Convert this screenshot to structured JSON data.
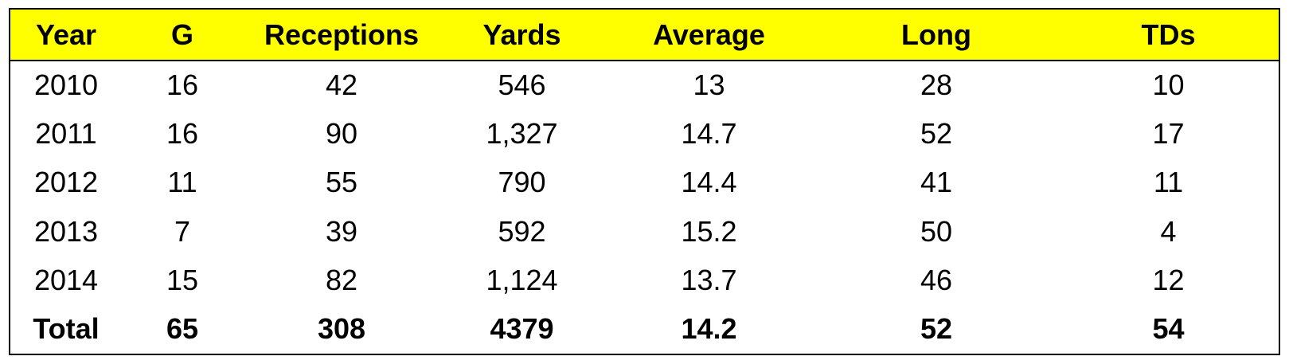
{
  "colors": {
    "header_background": "#ffff00",
    "border": "#000000",
    "text": "#000000",
    "background": "#ffffff"
  },
  "table": {
    "headers": [
      "Year",
      "G",
      "Receptions",
      "Yards",
      "Average",
      "Long",
      "TDs"
    ],
    "rows": [
      [
        "2010",
        "16",
        "42",
        "546",
        "13",
        "28",
        "10"
      ],
      [
        "2011",
        "16",
        "90",
        "1,327",
        "14.7",
        "52",
        "17"
      ],
      [
        "2012",
        "11",
        "55",
        "790",
        "14.4",
        "41",
        "11"
      ],
      [
        "2013",
        "7",
        "39",
        "592",
        "15.2",
        "50",
        "4"
      ],
      [
        "2014",
        "15",
        "82",
        "1,124",
        "13.7",
        "46",
        "12"
      ]
    ],
    "total": [
      "Total",
      "65",
      "308",
      "4379",
      "14.2",
      "52",
      "54"
    ]
  }
}
